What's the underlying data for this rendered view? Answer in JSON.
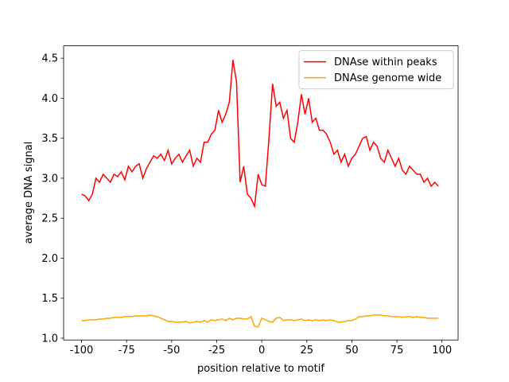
{
  "chart_data": {
    "type": "line",
    "xlabel": "position relative to motif",
    "ylabel": "average DNA signal",
    "x": [
      -100,
      -98,
      -96,
      -94,
      -92,
      -90,
      -88,
      -86,
      -84,
      -82,
      -80,
      -78,
      -76,
      -74,
      -72,
      -70,
      -68,
      -66,
      -64,
      -62,
      -60,
      -58,
      -56,
      -54,
      -52,
      -50,
      -48,
      -46,
      -44,
      -42,
      -40,
      -38,
      -36,
      -34,
      -32,
      -30,
      -28,
      -26,
      -24,
      -22,
      -20,
      -18,
      -16,
      -14,
      -12,
      -10,
      -8,
      -6,
      -4,
      -2,
      0,
      2,
      4,
      6,
      8,
      10,
      12,
      14,
      16,
      18,
      20,
      22,
      24,
      26,
      28,
      30,
      32,
      34,
      36,
      38,
      40,
      42,
      44,
      46,
      48,
      50,
      52,
      54,
      56,
      58,
      60,
      62,
      64,
      66,
      68,
      70,
      72,
      74,
      76,
      78,
      80,
      82,
      84,
      86,
      88,
      90,
      92,
      94,
      96,
      98
    ],
    "series": [
      {
        "name": "DNAse within peaks",
        "color": "#ff0000",
        "values": [
          2.8,
          2.78,
          2.72,
          2.8,
          3.0,
          2.95,
          3.05,
          3.0,
          2.95,
          3.05,
          3.02,
          3.08,
          2.98,
          3.15,
          3.08,
          3.15,
          3.18,
          3.0,
          3.12,
          3.2,
          3.28,
          3.25,
          3.3,
          3.22,
          3.35,
          3.18,
          3.25,
          3.3,
          3.2,
          3.28,
          3.35,
          3.15,
          3.25,
          3.2,
          3.45,
          3.45,
          3.55,
          3.6,
          3.85,
          3.7,
          3.8,
          3.95,
          4.48,
          4.2,
          2.95,
          3.15,
          2.8,
          2.75,
          2.65,
          3.05,
          2.92,
          2.9,
          3.5,
          4.18,
          3.9,
          3.95,
          3.75,
          3.85,
          3.5,
          3.45,
          3.7,
          4.05,
          3.8,
          4.0,
          3.7,
          3.75,
          3.6,
          3.6,
          3.55,
          3.45,
          3.3,
          3.35,
          3.2,
          3.3,
          3.15,
          3.25,
          3.3,
          3.4,
          3.5,
          3.52,
          3.35,
          3.45,
          3.4,
          3.25,
          3.2,
          3.35,
          3.25,
          3.15,
          3.25,
          3.1,
          3.05,
          3.15,
          3.1,
          3.05,
          3.05,
          2.95,
          3.0,
          2.9,
          2.95,
          2.9
        ]
      },
      {
        "name": "DNAse genome wide",
        "color": "#ffa500",
        "values": [
          1.22,
          1.22,
          1.23,
          1.23,
          1.23,
          1.24,
          1.24,
          1.25,
          1.25,
          1.26,
          1.26,
          1.26,
          1.27,
          1.27,
          1.27,
          1.28,
          1.28,
          1.28,
          1.28,
          1.29,
          1.28,
          1.27,
          1.25,
          1.23,
          1.21,
          1.21,
          1.2,
          1.2,
          1.2,
          1.21,
          1.19,
          1.2,
          1.21,
          1.2,
          1.22,
          1.2,
          1.23,
          1.22,
          1.23,
          1.24,
          1.22,
          1.25,
          1.23,
          1.25,
          1.25,
          1.24,
          1.24,
          1.27,
          1.15,
          1.14,
          1.25,
          1.23,
          1.21,
          1.2,
          1.25,
          1.26,
          1.22,
          1.23,
          1.23,
          1.22,
          1.23,
          1.24,
          1.22,
          1.23,
          1.22,
          1.23,
          1.22,
          1.23,
          1.22,
          1.23,
          1.22,
          1.2,
          1.2,
          1.21,
          1.22,
          1.22,
          1.24,
          1.27,
          1.27,
          1.28,
          1.28,
          1.29,
          1.29,
          1.29,
          1.28,
          1.28,
          1.27,
          1.27,
          1.27,
          1.26,
          1.27,
          1.27,
          1.26,
          1.27,
          1.26,
          1.26,
          1.25,
          1.25,
          1.25,
          1.25
        ]
      }
    ],
    "xlim": [
      -109.95,
      108.95
    ],
    "xticks": [
      -100,
      -75,
      -50,
      -25,
      0,
      25,
      50,
      75,
      100
    ],
    "ylim": [
      0.978,
      4.655
    ],
    "yticks": [
      {
        "value": 1.0,
        "label": "1.0"
      },
      {
        "value": 1.5,
        "label": "1.5"
      },
      {
        "value": 2.0,
        "label": "2.0"
      },
      {
        "value": 2.5,
        "label": "2.5"
      },
      {
        "value": 3.0,
        "label": "3.0"
      },
      {
        "value": 3.5,
        "label": "3.5"
      },
      {
        "value": 4.0,
        "label": "4.0"
      },
      {
        "value": 4.5,
        "label": "4.5"
      }
    ],
    "legend": "upper right"
  }
}
